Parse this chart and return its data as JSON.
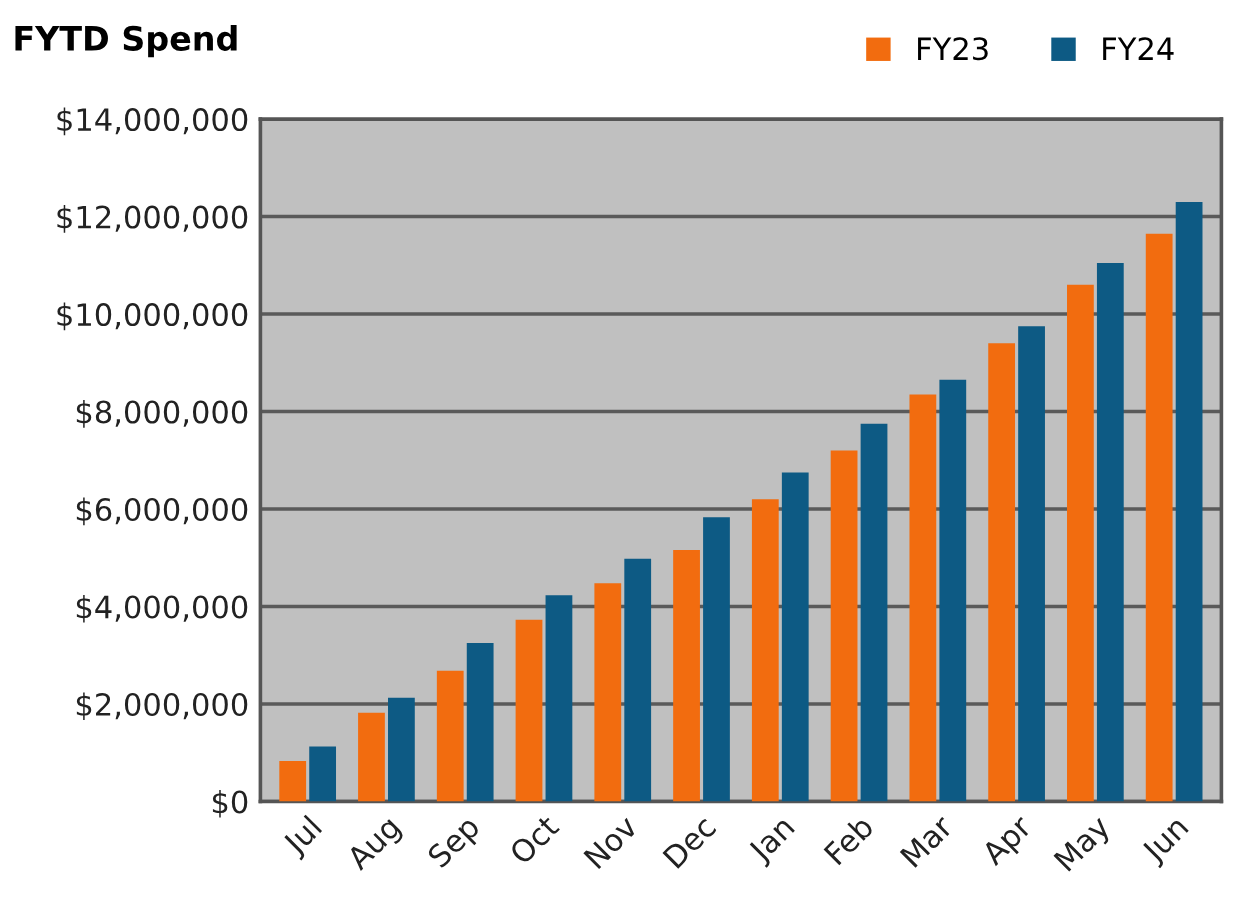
{
  "chart_data": {
    "type": "bar",
    "title": "FYTD Spend",
    "categories": [
      "Jul",
      "Aug",
      "Sep",
      "Oct",
      "Nov",
      "Dec",
      "Jan",
      "Feb",
      "Mar",
      "Apr",
      "May",
      "Jun"
    ],
    "series": [
      {
        "name": "FY23",
        "color": "#f26c0f",
        "values": [
          830000,
          1820000,
          2680000,
          3730000,
          4480000,
          5160000,
          6200000,
          7200000,
          8350000,
          9400000,
          10600000,
          11650000
        ]
      },
      {
        "name": "FY24",
        "color": "#0d5a84",
        "values": [
          1130000,
          2130000,
          3250000,
          4230000,
          4980000,
          5830000,
          6750000,
          7750000,
          8650000,
          9750000,
          11050000,
          12300000
        ]
      }
    ],
    "ylim": [
      0,
      14000000
    ],
    "yticks": [
      {
        "value": 0,
        "label": "$0"
      },
      {
        "value": 2000000,
        "label": "$2,000,000"
      },
      {
        "value": 4000000,
        "label": "$4,000,000"
      },
      {
        "value": 6000000,
        "label": "$6,000,000"
      },
      {
        "value": 8000000,
        "label": "$8,000,000"
      },
      {
        "value": 10000000,
        "label": "$10,000,000"
      },
      {
        "value": 12000000,
        "label": "$12,000,000"
      },
      {
        "value": 14000000,
        "label": "$14,000,000"
      }
    ],
    "grid": "y",
    "legend": "top right"
  }
}
